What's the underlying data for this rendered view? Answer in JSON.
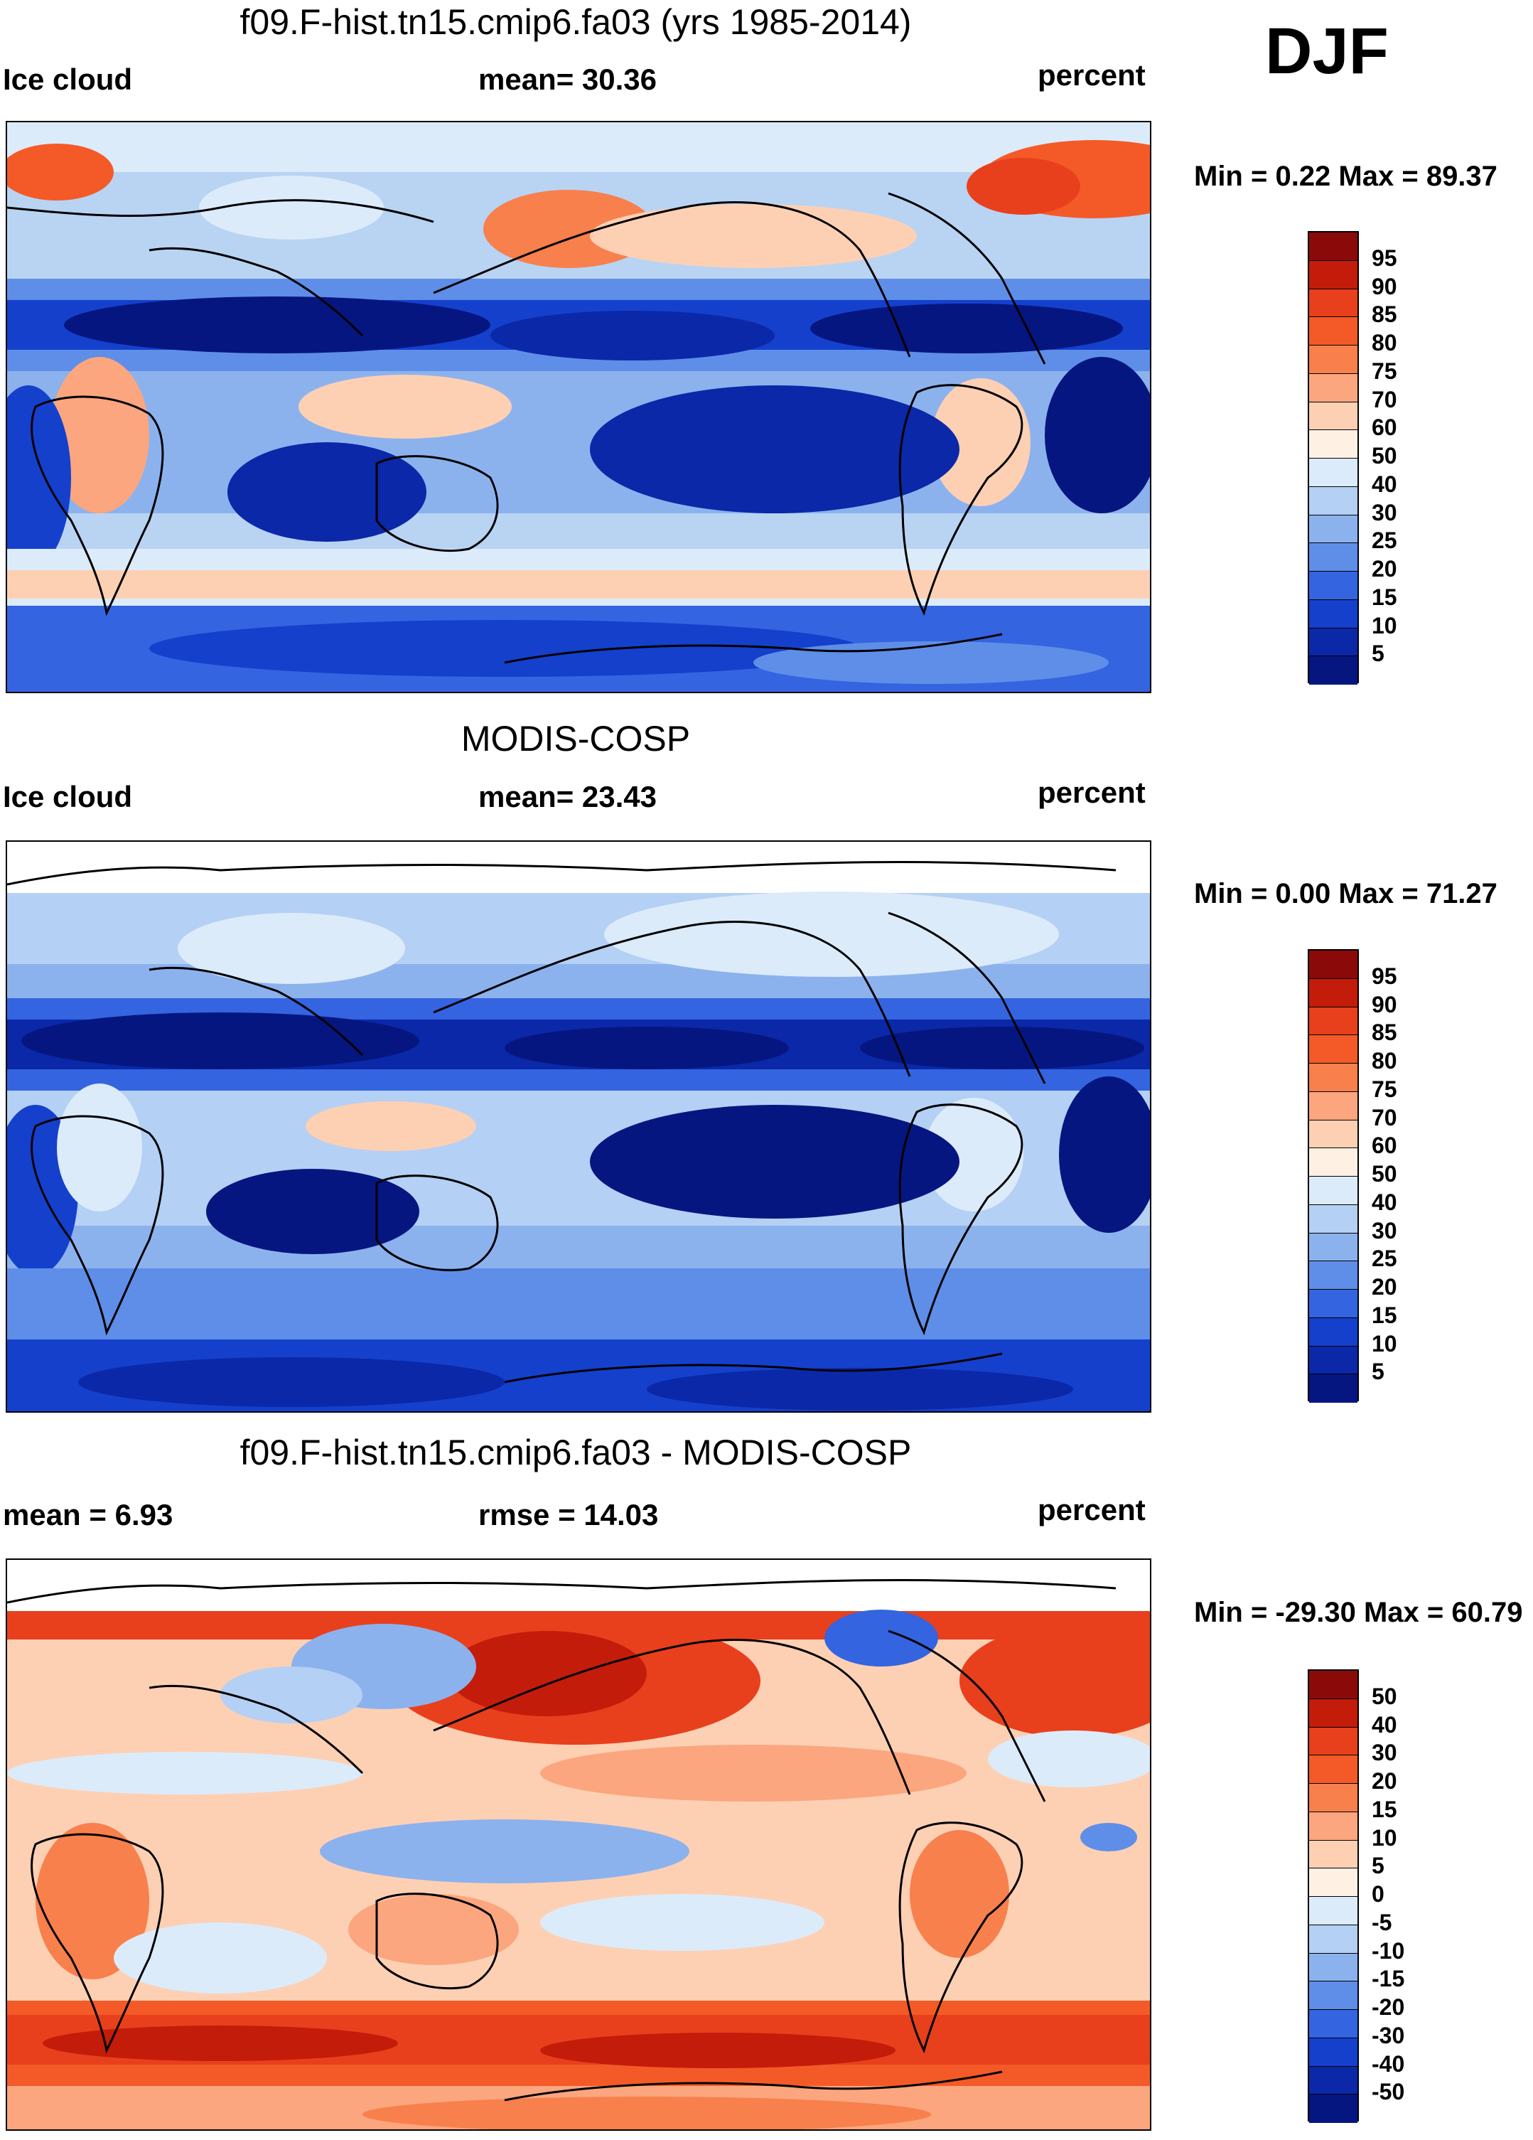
{
  "season": "DJF",
  "panels": [
    {
      "id": "model",
      "title": "f09.F-hist.tn15.cmip6.fa03 (yrs 1985-2014)",
      "left_label": "Ice cloud",
      "center_label": "mean=  30.36",
      "units": "percent",
      "minmax": "Min =   0.22 Max =  89.37",
      "colorbar": {
        "labels": [
          "95",
          "90",
          "85",
          "80",
          "75",
          "70",
          "60",
          "50",
          "40",
          "30",
          "25",
          "20",
          "15",
          "10",
          "5"
        ],
        "colors": [
          "#8a0a0a",
          "#c41c0a",
          "#e8401c",
          "#f45a28",
          "#f8804c",
          "#fba67e",
          "#fdd0b4",
          "#fff0e4",
          "#dcebfa",
          "#b4d0f4",
          "#8cb2ee",
          "#5f8ee8",
          "#3464e0",
          "#1440cc",
          "#0a28a8",
          "#061680"
        ]
      }
    },
    {
      "id": "obs",
      "title": "MODIS-COSP",
      "left_label": "Ice cloud",
      "center_label": "mean=  23.43",
      "units": "percent",
      "minmax": "Min =   0.00 Max =  71.27",
      "colorbar": {
        "labels": [
          "95",
          "90",
          "85",
          "80",
          "75",
          "70",
          "60",
          "50",
          "40",
          "30",
          "25",
          "20",
          "15",
          "10",
          "5"
        ],
        "colors": [
          "#8a0a0a",
          "#c41c0a",
          "#e8401c",
          "#f45a28",
          "#f8804c",
          "#fba67e",
          "#fdd0b4",
          "#fff0e4",
          "#dcebfa",
          "#b4d0f4",
          "#8cb2ee",
          "#5f8ee8",
          "#3464e0",
          "#1440cc",
          "#0a28a8",
          "#061680"
        ]
      }
    },
    {
      "id": "diff",
      "title": "f09.F-hist.tn15.cmip6.fa03 - MODIS-COSP",
      "left_label": "mean =    6.93",
      "center_label": "rmse =  14.03",
      "units": "percent",
      "minmax": "Min = -29.30 Max =  60.79",
      "colorbar": {
        "labels": [
          "50",
          "40",
          "30",
          "20",
          "15",
          "10",
          "5",
          "0",
          "-5",
          "-10",
          "-15",
          "-20",
          "-30",
          "-40",
          "-50"
        ],
        "colors": [
          "#8a0a0a",
          "#c41c0a",
          "#e8401c",
          "#f45a28",
          "#f8804c",
          "#fba67e",
          "#fdd0b4",
          "#fff0e4",
          "#dcebfa",
          "#b4d0f4",
          "#8cb2ee",
          "#5f8ee8",
          "#3464e0",
          "#1440cc",
          "#0a28a8",
          "#061680"
        ]
      }
    }
  ]
}
